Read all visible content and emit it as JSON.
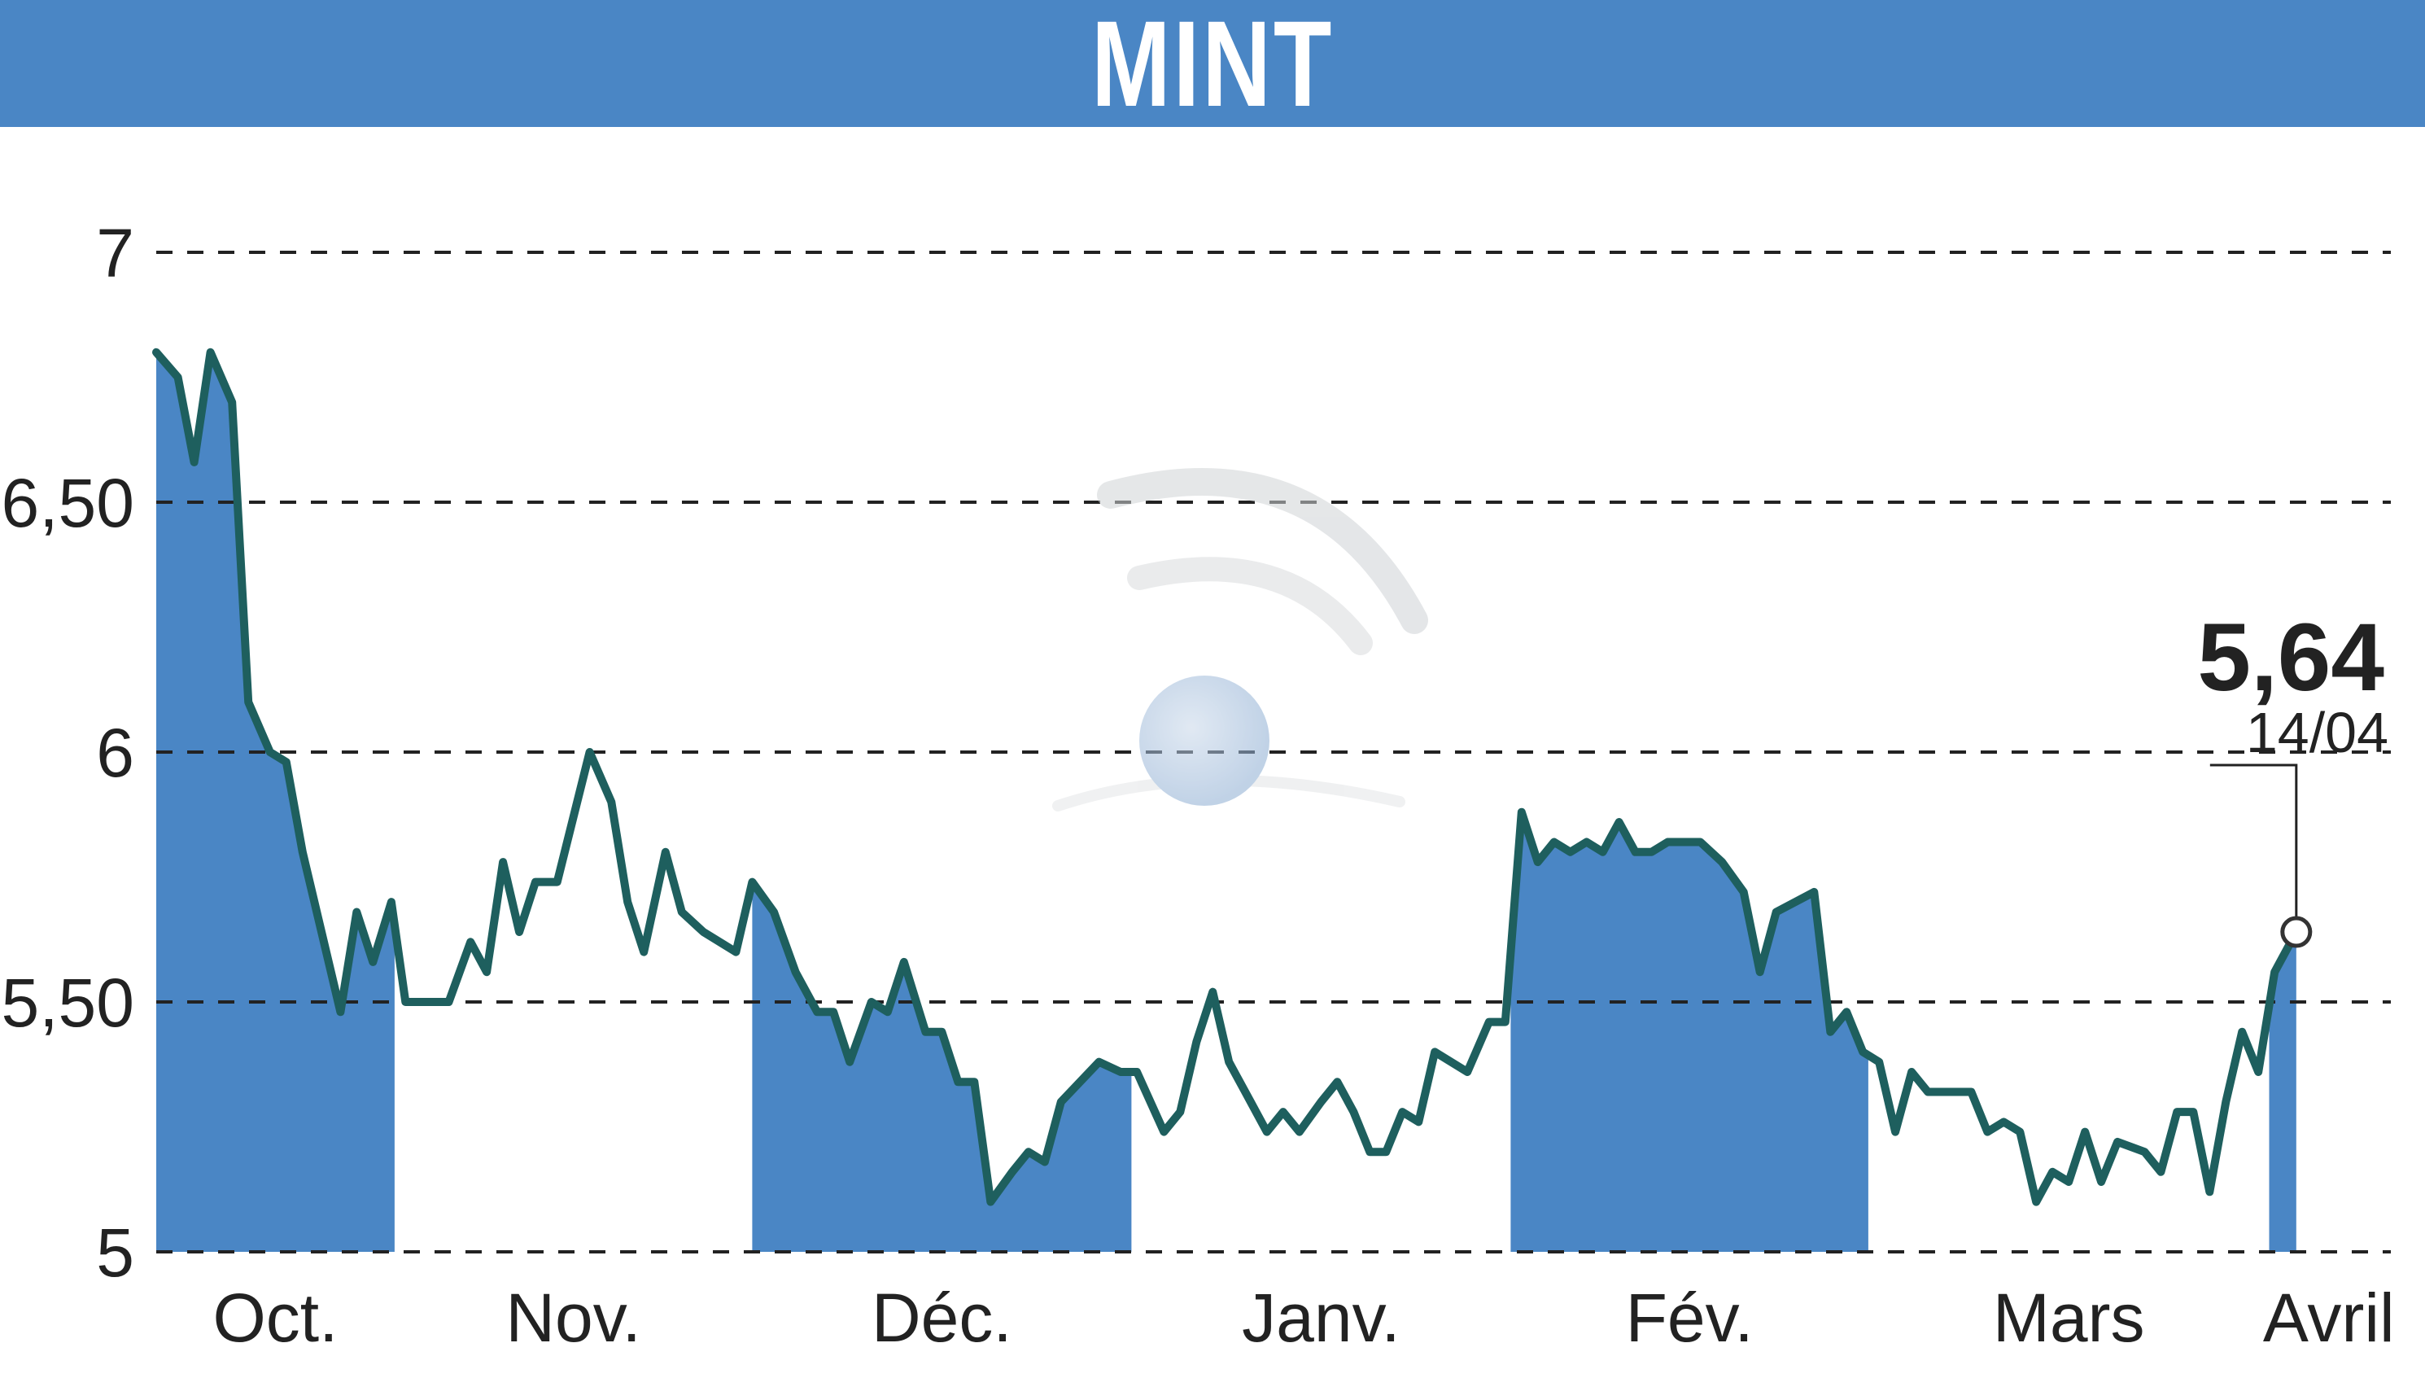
{
  "title": "MINT",
  "colors": {
    "banner": "#4a86c5",
    "fill": "#4a86c5",
    "line": "#1e5f5e",
    "grid": "#222222"
  },
  "chart_data": {
    "type": "line",
    "title": "MINT",
    "ylim": [
      5,
      7
    ],
    "yticks": [
      {
        "value": 5,
        "label": "5"
      },
      {
        "value": 5.5,
        "label": "5,50"
      },
      {
        "value": 6,
        "label": "6"
      },
      {
        "value": 6.5,
        "label": "6,50"
      },
      {
        "value": 7,
        "label": "7"
      }
    ],
    "grid": "horizontal-dashed",
    "xlim": [
      0,
      206
    ],
    "months": [
      {
        "label": "Oct.",
        "start": 0,
        "end": 22,
        "shaded": true
      },
      {
        "label": "Nov.",
        "start": 22,
        "end": 55,
        "shaded": false
      },
      {
        "label": "Déc.",
        "start": 55,
        "end": 90,
        "shaded": true
      },
      {
        "label": "Janv.",
        "start": 90,
        "end": 125,
        "shaded": false
      },
      {
        "label": "Fév.",
        "start": 125,
        "end": 158,
        "shaded": true
      },
      {
        "label": "Mars",
        "start": 158,
        "end": 195,
        "shaded": false
      },
      {
        "label": "Avril",
        "start": 195,
        "end": 206,
        "shaded": true
      }
    ],
    "points": [
      [
        0,
        6.8
      ],
      [
        2,
        6.75
      ],
      [
        3.5,
        6.58
      ],
      [
        5,
        6.8
      ],
      [
        7,
        6.7
      ],
      [
        8.5,
        6.1
      ],
      [
        10.5,
        6.0
      ],
      [
        12,
        5.98
      ],
      [
        13.5,
        5.8
      ],
      [
        17,
        5.48
      ],
      [
        18.5,
        5.68
      ],
      [
        20,
        5.58
      ],
      [
        21.7,
        5.7
      ],
      [
        23,
        5.5
      ],
      [
        27,
        5.5
      ],
      [
        29,
        5.62
      ],
      [
        30.5,
        5.56
      ],
      [
        32,
        5.78
      ],
      [
        33.5,
        5.64
      ],
      [
        35,
        5.74
      ],
      [
        37,
        5.74
      ],
      [
        40,
        6.0
      ],
      [
        42,
        5.9
      ],
      [
        43.5,
        5.7
      ],
      [
        45,
        5.6
      ],
      [
        47,
        5.8
      ],
      [
        48.5,
        5.68
      ],
      [
        50.5,
        5.64
      ],
      [
        53.5,
        5.6
      ],
      [
        55,
        5.74
      ],
      [
        57,
        5.68
      ],
      [
        59,
        5.56
      ],
      [
        61,
        5.48
      ],
      [
        62.5,
        5.48
      ],
      [
        64,
        5.38
      ],
      [
        66,
        5.5
      ],
      [
        67.5,
        5.48
      ],
      [
        69,
        5.58
      ],
      [
        71,
        5.44
      ],
      [
        72.5,
        5.44
      ],
      [
        74,
        5.34
      ],
      [
        75.5,
        5.34
      ],
      [
        77,
        5.1
      ],
      [
        79,
        5.16
      ],
      [
        80.5,
        5.2
      ],
      [
        82,
        5.18
      ],
      [
        83.5,
        5.3
      ],
      [
        87,
        5.38
      ],
      [
        89,
        5.36
      ],
      [
        90.5,
        5.36
      ],
      [
        93,
        5.24
      ],
      [
        94.5,
        5.28
      ],
      [
        96,
        5.42
      ],
      [
        97.5,
        5.52
      ],
      [
        99,
        5.38
      ],
      [
        101,
        5.3
      ],
      [
        102.5,
        5.24
      ],
      [
        104,
        5.28
      ],
      [
        105.5,
        5.24
      ],
      [
        107.5,
        5.3
      ],
      [
        109,
        5.34
      ],
      [
        110.5,
        5.28
      ],
      [
        112,
        5.2
      ],
      [
        113.5,
        5.2
      ],
      [
        115,
        5.28
      ],
      [
        116.5,
        5.26
      ],
      [
        118,
        5.4
      ],
      [
        121,
        5.36
      ],
      [
        123,
        5.46
      ],
      [
        124.5,
        5.46
      ],
      [
        126,
        5.88
      ],
      [
        127.5,
        5.78
      ],
      [
        129,
        5.82
      ],
      [
        130.5,
        5.8
      ],
      [
        132,
        5.82
      ],
      [
        133.5,
        5.8
      ],
      [
        135,
        5.86
      ],
      [
        136.5,
        5.8
      ],
      [
        138,
        5.8
      ],
      [
        139.5,
        5.82
      ],
      [
        142.5,
        5.82
      ],
      [
        144.5,
        5.78
      ],
      [
        146.5,
        5.72
      ],
      [
        148,
        5.56
      ],
      [
        149.5,
        5.68
      ],
      [
        153,
        5.72
      ],
      [
        154.5,
        5.44
      ],
      [
        156,
        5.48
      ],
      [
        157.5,
        5.4
      ],
      [
        159,
        5.38
      ],
      [
        160.5,
        5.24
      ],
      [
        162,
        5.36
      ],
      [
        163.5,
        5.32
      ],
      [
        167.5,
        5.32
      ],
      [
        169,
        5.24
      ],
      [
        170.5,
        5.26
      ],
      [
        172,
        5.24
      ],
      [
        173.5,
        5.1
      ],
      [
        175,
        5.16
      ],
      [
        176.5,
        5.14
      ],
      [
        178,
        5.24
      ],
      [
        179.5,
        5.14
      ],
      [
        181,
        5.22
      ],
      [
        183.5,
        5.2
      ],
      [
        185,
        5.16
      ],
      [
        186.5,
        5.28
      ],
      [
        188,
        5.28
      ],
      [
        189.5,
        5.12
      ],
      [
        191,
        5.3
      ],
      [
        192.5,
        5.44
      ],
      [
        194,
        5.36
      ],
      [
        195.5,
        5.56
      ],
      [
        197.5,
        5.64
      ]
    ],
    "last_value": {
      "label": "5,64",
      "date": "14/04",
      "value": 5.64,
      "x": 197.5
    }
  }
}
